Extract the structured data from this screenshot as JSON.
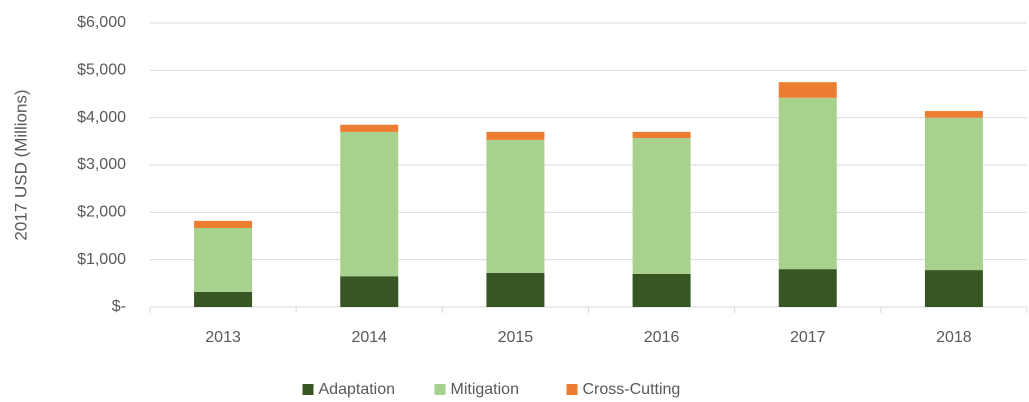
{
  "chart_data": {
    "type": "stacked_bar",
    "y_label": "2017 USD (Millions)",
    "categories": [
      "2013",
      "2014",
      "2015",
      "2016",
      "2017",
      "2018"
    ],
    "series": [
      {
        "name": "Adaptation",
        "color": "#375623",
        "values": [
          320,
          650,
          720,
          700,
          800,
          780
        ]
      },
      {
        "name": "Mitigation",
        "color": "#a9d18e",
        "values": [
          1350,
          3050,
          2810,
          2870,
          3620,
          3220
        ]
      },
      {
        "name": "Cross-Cutting",
        "color": "#ed7d31",
        "values": [
          150,
          150,
          170,
          130,
          330,
          140
        ]
      }
    ],
    "ylim": [
      0,
      6000
    ],
    "yticks": [
      {
        "value": 0,
        "label": "$-"
      },
      {
        "value": 1000,
        "label": "$1,000"
      },
      {
        "value": 2000,
        "label": "$2,000"
      },
      {
        "value": 3000,
        "label": "$3,000"
      },
      {
        "value": 4000,
        "label": "$4,000"
      },
      {
        "value": 5000,
        "label": "$5,000"
      },
      {
        "value": 6000,
        "label": "$6,000"
      }
    ],
    "grid": true,
    "legend": "bottom"
  }
}
